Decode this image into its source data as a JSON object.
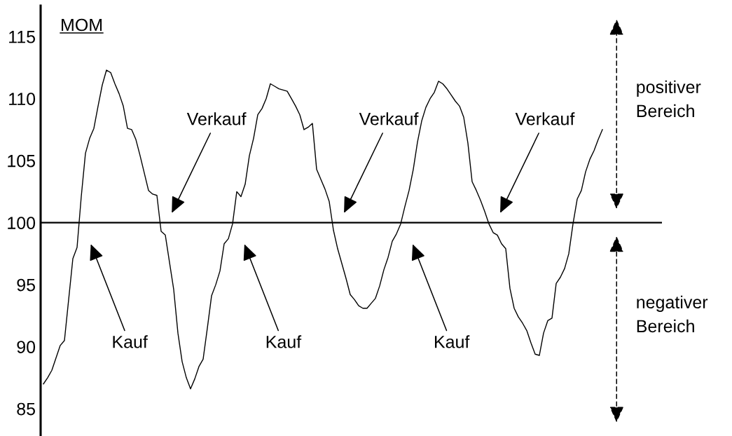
{
  "chart_data": {
    "type": "line",
    "title": "MOM",
    "categories": [
      null,
      null,
      null,
      null,
      null,
      null,
      null,
      null,
      null,
      null,
      null,
      null,
      null,
      null,
      null,
      null,
      null,
      null,
      null,
      null,
      null,
      null,
      null,
      null,
      null,
      null,
      null,
      null,
      null,
      null,
      null,
      null,
      null,
      null,
      null,
      null,
      null,
      null,
      null,
      null,
      null,
      null,
      null,
      null,
      null,
      null,
      null,
      null,
      null,
      null,
      null,
      null,
      null,
      null,
      null,
      null,
      null,
      null,
      null,
      null,
      null,
      null,
      null,
      null,
      null,
      null,
      null,
      null,
      null,
      null,
      null,
      null,
      null,
      null,
      null,
      null,
      null,
      null,
      null,
      null,
      null,
      null,
      null,
      null,
      null,
      null,
      null,
      null,
      null,
      null,
      null,
      null,
      null,
      null,
      null,
      null,
      null,
      null,
      null,
      null,
      null,
      null,
      null,
      null,
      null,
      null,
      null,
      null,
      null,
      null,
      null,
      null,
      null,
      null,
      null,
      null,
      null,
      null,
      null,
      null,
      null,
      null,
      null,
      null,
      null,
      null,
      null,
      null,
      null,
      null,
      null,
      null,
      null,
      null
    ],
    "series": [
      {
        "color": "#000000",
        "values": [
          87.0,
          87.5,
          88.1,
          89.1,
          90.1,
          90.5,
          93.8,
          97.1,
          98.0,
          102.1,
          105.6,
          106.8,
          107.6,
          109.4,
          111.1,
          112.3,
          112.1,
          111.2,
          110.4,
          109.4,
          107.6,
          107.5,
          106.7,
          105.4,
          104.0,
          102.6,
          102.3,
          102.2,
          99.3,
          99.0,
          96.8,
          94.6,
          91.1,
          88.8,
          87.5,
          86.6,
          87.4,
          88.4,
          89.0,
          91.5,
          94.1,
          95.0,
          96.1,
          98.3,
          98.7,
          99.9,
          102.5,
          102.1,
          103.1,
          105.4,
          106.8,
          108.7,
          109.2,
          110.0,
          111.2,
          111.0,
          110.8,
          110.7,
          110.6,
          110.0,
          109.4,
          108.7,
          107.5,
          107.7,
          108.0,
          104.3,
          103.5,
          102.7,
          101.7,
          99.4,
          97.9,
          96.7,
          95.5,
          94.2,
          93.8,
          93.3,
          93.1,
          93.1,
          93.5,
          93.9,
          94.9,
          96.2,
          97.2,
          98.5,
          99.1,
          99.9,
          101.3,
          102.6,
          104.3,
          106.5,
          108.2,
          109.3,
          110.0,
          110.5,
          111.4,
          111.2,
          110.8,
          110.3,
          109.8,
          109.4,
          108.5,
          106.4,
          103.3,
          102.6,
          101.8,
          100.9,
          99.9,
          99.2,
          99.0,
          98.3,
          97.9,
          94.7,
          93.1,
          92.4,
          91.9,
          91.3,
          90.3,
          89.4,
          89.3,
          91.1,
          92.1,
          92.3,
          95.1,
          95.6,
          96.3,
          97.5,
          99.9,
          101.9,
          102.6,
          104.1,
          105.1,
          105.8,
          106.7,
          107.5
        ]
      }
    ],
    "ylim": [
      82.8,
      117.5
    ],
    "yticks": [
      85,
      90,
      95,
      100,
      105,
      110,
      115
    ],
    "tick_labels": "y",
    "ref_lines": [
      {
        "axis": "y",
        "value": 100,
        "color": "#000000"
      }
    ],
    "annotations": [
      "Kauf",
      "Verkauf",
      "Kauf",
      "Verkauf",
      "Kauf",
      "Verkauf",
      "positiver\nBereich",
      "negativer\nBereich"
    ]
  }
}
